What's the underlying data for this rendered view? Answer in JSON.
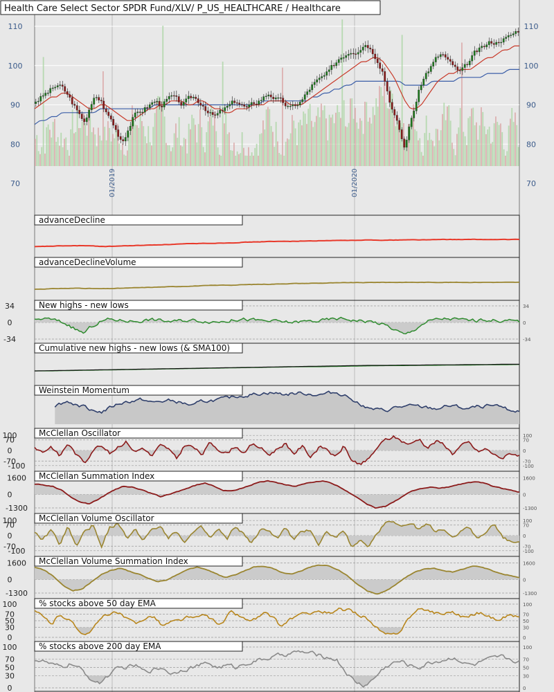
{
  "title": "Health Care Select Sector SPDR Fund/XLV/ P_US_HEALTHCARE / Healthcare",
  "colors": {
    "background": "#e8e8e8",
    "candle_up": "#1e7a1e",
    "candle_down": "#8b1a1a",
    "sma_long": "#3b5ea8",
    "sma_mid": "#c83a2a",
    "sma_short": "#8b6a3a",
    "ad_line": "#e8392a",
    "olive": "#9a8530",
    "green": "#2e8b2e",
    "navy": "#2f3f6b",
    "maroon": "#8b1a1a",
    "gray_line": "#8a8a8a",
    "fill_gray": "#c8c8c8"
  },
  "chart_data": [
    {
      "type": "line",
      "title": "Health Care Select Sector SPDR Fund/XLV/ P_US_HEALTHCARE / Healthcare",
      "x_labels": [
        "01/2019",
        "01/2020"
      ],
      "y_ticks": [
        110,
        100,
        90,
        80,
        70
      ],
      "ylim": [
        70,
        115
      ],
      "series": [
        {
          "role": "price",
          "values": [
            91,
            92,
            93,
            94,
            95,
            94,
            92,
            90,
            87,
            86,
            89,
            92,
            91,
            88,
            86,
            83,
            81,
            84,
            87,
            88,
            89,
            90,
            91,
            90,
            91,
            92,
            91,
            90,
            91,
            92,
            91,
            90,
            88,
            87,
            88,
            89,
            90,
            91,
            90,
            89,
            90,
            91,
            92,
            93,
            92,
            91,
            90,
            89,
            90,
            91,
            93,
            95,
            96,
            97,
            98,
            100,
            102,
            103,
            104,
            104,
            105,
            106,
            104,
            102,
            99,
            93,
            88,
            84,
            79,
            85,
            90,
            95,
            98,
            100,
            102,
            103,
            101,
            100,
            98,
            99,
            101,
            103,
            104,
            105,
            106,
            106,
            107,
            107,
            108,
            109
          ]
        },
        {
          "role": "sma_200",
          "values": [
            85,
            86,
            86,
            87,
            87,
            88,
            88,
            88,
            88,
            88,
            88,
            88,
            89,
            89,
            89,
            89,
            89,
            89,
            89,
            89,
            89,
            89,
            90,
            90,
            90,
            90,
            90,
            90,
            90,
            90,
            90,
            90,
            90,
            90,
            90,
            90,
            90,
            90,
            90,
            90,
            90,
            90,
            91,
            91,
            91,
            91,
            91,
            91,
            91,
            91,
            91,
            92,
            92,
            93,
            93,
            94,
            94,
            95,
            95,
            96,
            96,
            96,
            96,
            96,
            96,
            96,
            96,
            96,
            95,
            95,
            95,
            95,
            95,
            96,
            96,
            96,
            96,
            96,
            97,
            97,
            97,
            97,
            97,
            98,
            98,
            98,
            98,
            99,
            99,
            99
          ]
        },
        {
          "role": "sma_50",
          "values": [
            89,
            90,
            91,
            92,
            92,
            93,
            93,
            92,
            91,
            90,
            89,
            89,
            90,
            90,
            89,
            88,
            87,
            86,
            86,
            87,
            88,
            89,
            89,
            90,
            90,
            91,
            91,
            91,
            90,
            90,
            91,
            91,
            90,
            89,
            89,
            88,
            88,
            89,
            89,
            89,
            90,
            90,
            90,
            91,
            91,
            91,
            91,
            90,
            90,
            90,
            91,
            92,
            93,
            94,
            95,
            96,
            97,
            98,
            99,
            100,
            101,
            101,
            102,
            102,
            101,
            99,
            97,
            94,
            91,
            89,
            89,
            90,
            92,
            94,
            96,
            97,
            98,
            98,
            99,
            99,
            99,
            100,
            101,
            102,
            102,
            103,
            104,
            104,
            105,
            105
          ]
        }
      ]
    },
    {
      "type": "line",
      "title": "advanceDecline",
      "values": [
        0,
        1,
        2,
        3,
        3,
        4,
        3,
        2,
        1,
        2,
        3,
        4,
        5,
        6,
        7,
        8,
        9,
        10,
        11,
        12,
        12,
        13,
        14,
        15,
        16,
        17,
        18,
        18,
        19,
        19,
        20,
        20,
        21,
        21,
        22,
        22,
        22,
        23,
        23,
        23,
        23,
        24,
        24,
        24,
        24,
        25,
        25,
        25,
        25,
        25,
        25,
        25,
        25,
        25,
        25
      ]
    },
    {
      "type": "line",
      "title": "advanceDeclineVolume",
      "values": [
        0,
        1,
        2,
        3,
        3,
        4,
        3,
        2,
        2,
        3,
        4,
        5,
        6,
        7,
        8,
        9,
        10,
        11,
        12,
        13,
        14,
        15,
        15,
        16,
        17,
        18,
        18,
        19,
        20,
        21,
        21,
        22,
        22,
        23,
        23,
        24,
        24,
        24,
        25,
        25,
        25,
        25,
        25,
        25,
        25,
        25,
        25,
        25,
        25,
        25,
        25,
        25,
        25,
        25,
        25
      ]
    },
    {
      "type": "area",
      "title": "New highs - new lows",
      "y_ticks": [
        34,
        0,
        -34
      ],
      "values": [
        4,
        8,
        6,
        2,
        -4,
        -14,
        -22,
        -8,
        2,
        6,
        5,
        4,
        3,
        4,
        6,
        5,
        3,
        2,
        4,
        5,
        4,
        3,
        2,
        3,
        5,
        7,
        6,
        4,
        3,
        2,
        1,
        0,
        1,
        2,
        3,
        4,
        6,
        8,
        7,
        5,
        3,
        2,
        -2,
        -8,
        -16,
        -26,
        -18,
        -4,
        3,
        6,
        8,
        7,
        5,
        4,
        4,
        6,
        5,
        4,
        3,
        2
      ]
    },
    {
      "type": "line",
      "title": "Cumulative new highs - new lows (& SMA100)",
      "series": [
        {
          "role": "cumulative",
          "values": [
            0,
            1,
            2,
            3,
            4,
            5,
            6,
            7,
            8,
            9,
            10,
            11,
            12,
            13,
            14,
            15,
            16,
            17,
            18,
            19,
            20,
            20,
            21,
            21,
            22,
            22,
            23,
            23,
            24,
            24
          ]
        },
        {
          "role": "sma100",
          "values": [
            0,
            0,
            1,
            2,
            3,
            4,
            5,
            6,
            7,
            8,
            9,
            10,
            11,
            12,
            13,
            14,
            15,
            15,
            16,
            17,
            18,
            19,
            19,
            20,
            20,
            21,
            21,
            22,
            22,
            23
          ]
        }
      ]
    },
    {
      "type": "area",
      "title": "Weinstein Momentum",
      "values": [
        34,
        22,
        16,
        20,
        25,
        18,
        14,
        8,
        4,
        12,
        20,
        24,
        26,
        28,
        22,
        24,
        26,
        24,
        20,
        16,
        24,
        26,
        28,
        30,
        34,
        36,
        38,
        40,
        42,
        40,
        38,
        40,
        41,
        39,
        37,
        40,
        42,
        38,
        30,
        20,
        10,
        8,
        6,
        12,
        14,
        15,
        14,
        12,
        10,
        14,
        16,
        12,
        10,
        14,
        16,
        14,
        12,
        8,
        4
      ]
    },
    {
      "type": "area",
      "title": "McClellan Oscillator",
      "y_ticks": [
        100,
        70,
        0,
        -70,
        -100
      ],
      "values": [
        20,
        -10,
        30,
        -40,
        50,
        -30,
        -80,
        10,
        40,
        -20,
        30,
        60,
        -10,
        20,
        -40,
        30,
        10,
        -60,
        40,
        20,
        -30,
        50,
        10,
        -20,
        30,
        -10,
        40,
        20,
        -30,
        10,
        50,
        -20,
        30,
        -40,
        20,
        10,
        -50,
        30,
        -70,
        -90,
        -60,
        20,
        70,
        90,
        60,
        40,
        80,
        20,
        60,
        40,
        -20,
        30,
        50,
        -10,
        10,
        -30,
        -50,
        -20,
        -30
      ]
    },
    {
      "type": "area",
      "title": "McClellan Summation Index",
      "y_ticks": [
        1600,
        0,
        -1300
      ],
      "values": [
        1000,
        900,
        800,
        400,
        -200,
        -700,
        -900,
        -500,
        0,
        500,
        800,
        700,
        400,
        100,
        -200,
        0,
        300,
        600,
        900,
        1100,
        800,
        400,
        300,
        600,
        900,
        1200,
        1300,
        1100,
        900,
        800,
        1000,
        1200,
        1300,
        1100,
        700,
        200,
        -300,
        -900,
        -1300,
        -1200,
        -700,
        -200,
        300,
        600,
        700,
        600,
        700,
        900,
        1100,
        1200,
        1100,
        800,
        600,
        400,
        200
      ]
    },
    {
      "type": "area",
      "title": "McClellan Volume Oscillator",
      "y_ticks": [
        100,
        70,
        0,
        -70,
        -100
      ],
      "values": [
        20,
        -30,
        40,
        -60,
        60,
        -80,
        30,
        70,
        -90,
        60,
        80,
        -20,
        40,
        -30,
        50,
        70,
        -10,
        30,
        -40,
        20,
        50,
        -20,
        40,
        -30,
        60,
        10,
        -50,
        30,
        40,
        -20,
        50,
        -30,
        20,
        40,
        -60,
        30,
        -20,
        50,
        -80,
        -40,
        -70,
        20,
        90,
        100,
        60,
        80,
        40,
        70,
        30,
        50,
        -20,
        40,
        60,
        -30,
        20,
        80,
        -10,
        -50,
        -30
      ]
    },
    {
      "type": "area",
      "title": "McClellan Volume Summation Index",
      "y_ticks": [
        1600,
        0,
        -1300
      ],
      "values": [
        1200,
        900,
        300,
        -600,
        -1100,
        -900,
        -200,
        500,
        900,
        1100,
        800,
        500,
        100,
        -200,
        0,
        500,
        900,
        1200,
        1000,
        600,
        200,
        400,
        800,
        1200,
        1300,
        1100,
        700,
        500,
        800,
        1200,
        1400,
        1300,
        900,
        300,
        -500,
        -1100,
        -1400,
        -1100,
        -500,
        200,
        700,
        1000,
        1100,
        900,
        700,
        1000,
        1300,
        1200,
        900,
        600,
        400,
        200
      ]
    },
    {
      "type": "line",
      "title": "% stocks above 50 day EMA",
      "y_ticks": [
        100,
        70,
        50,
        30,
        0
      ],
      "values": [
        80,
        60,
        40,
        70,
        55,
        25,
        10,
        30,
        60,
        75,
        70,
        50,
        40,
        60,
        65,
        35,
        45,
        50,
        60,
        55,
        70,
        50,
        40,
        75,
        65,
        50,
        55,
        70,
        60,
        30,
        55,
        65,
        70,
        80,
        75,
        70,
        85,
        80,
        70,
        60,
        30,
        10,
        5,
        20,
        60,
        80,
        85,
        75,
        70,
        80,
        65,
        60,
        75,
        70,
        55,
        60,
        70,
        60
      ]
    },
    {
      "type": "line",
      "title": "% stocks above 200 day EMA",
      "y_ticks": [
        100,
        70,
        50,
        30,
        0
      ],
      "values": [
        70,
        65,
        55,
        50,
        60,
        45,
        25,
        10,
        30,
        45,
        50,
        55,
        40,
        45,
        50,
        35,
        45,
        50,
        55,
        60,
        50,
        55,
        50,
        60,
        65,
        70,
        75,
        80,
        85,
        88,
        85,
        80,
        75,
        70,
        40,
        15,
        5,
        20,
        45,
        60,
        65,
        55,
        50,
        60,
        65,
        70,
        75,
        60,
        55,
        65,
        70,
        75,
        70,
        65
      ]
    }
  ]
}
